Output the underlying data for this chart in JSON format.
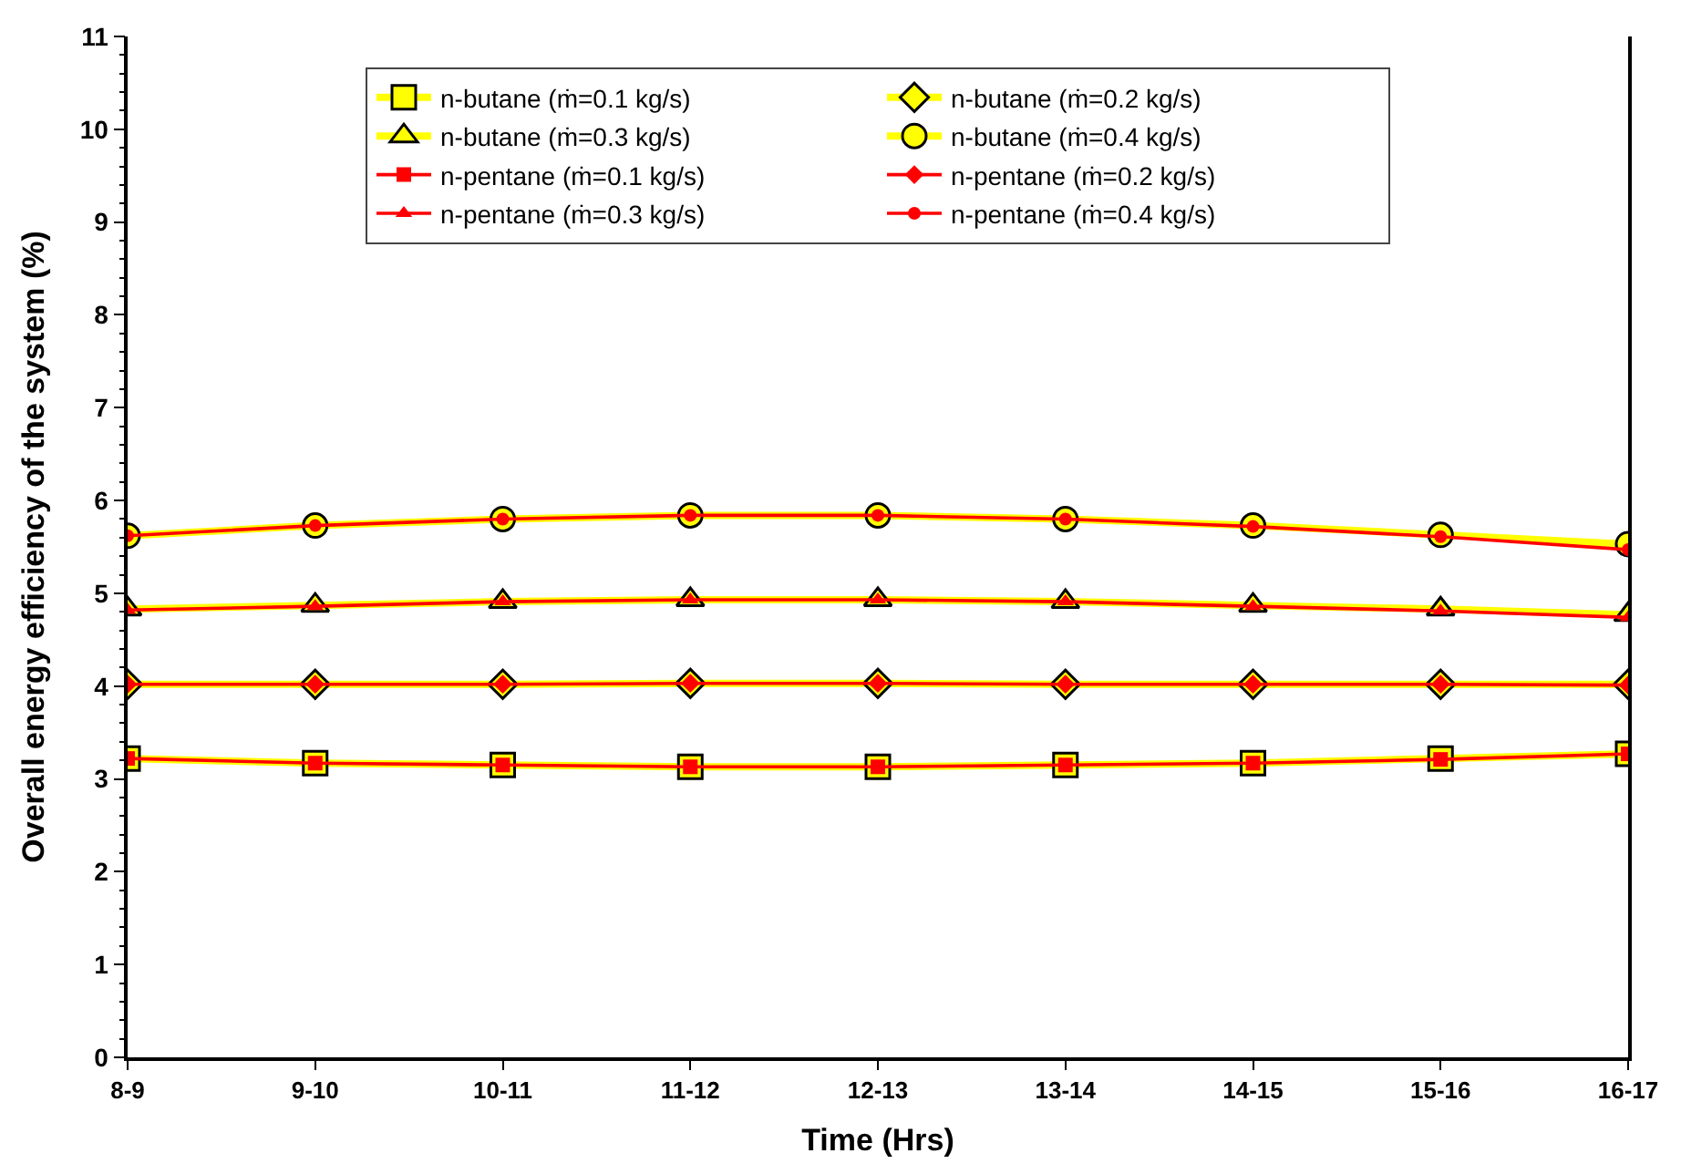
{
  "chart_data": {
    "type": "line",
    "xlabel": "Time (Hrs)",
    "ylabel": "Overall energy efficiency of the system (%)",
    "categories": [
      "8-9",
      "9-10",
      "10-11",
      "11-12",
      "12-13",
      "13-14",
      "14-15",
      "15-16",
      "16-17"
    ],
    "ylim": [
      0,
      11
    ],
    "yticks": [
      0,
      1,
      2,
      3,
      4,
      5,
      6,
      7,
      8,
      9,
      10,
      11
    ],
    "grid": false,
    "legend": "top",
    "series": [
      {
        "name": "n-butane (ṁ=0.1 kg/s)",
        "color": "#ffff00",
        "marker": "square",
        "values": [
          3.22,
          3.17,
          3.15,
          3.13,
          3.13,
          3.15,
          3.17,
          3.22,
          3.27
        ]
      },
      {
        "name": "n-butane (ṁ=0.2 kg/s)",
        "color": "#ffff00",
        "marker": "diamond",
        "values": [
          4.02,
          4.02,
          4.02,
          4.03,
          4.03,
          4.02,
          4.02,
          4.02,
          4.02
        ]
      },
      {
        "name": "n-butane (ṁ=0.3 kg/s)",
        "color": "#ffff00",
        "marker": "triangle",
        "values": [
          4.83,
          4.87,
          4.91,
          4.93,
          4.93,
          4.91,
          4.87,
          4.83,
          4.77
        ]
      },
      {
        "name": "n-butane (ṁ=0.4 kg/s)",
        "color": "#ffff00",
        "marker": "circle",
        "values": [
          5.62,
          5.73,
          5.8,
          5.84,
          5.84,
          5.8,
          5.73,
          5.63,
          5.53
        ]
      },
      {
        "name": "n-pentane (ṁ=0.1 kg/s)",
        "color": "#ff0000",
        "marker": "square",
        "values": [
          3.22,
          3.17,
          3.15,
          3.13,
          3.13,
          3.15,
          3.17,
          3.21,
          3.27
        ]
      },
      {
        "name": "n-pentane (ṁ=0.2 kg/s)",
        "color": "#ff0000",
        "marker": "diamond",
        "values": [
          4.02,
          4.02,
          4.02,
          4.03,
          4.03,
          4.02,
          4.02,
          4.02,
          4.01
        ]
      },
      {
        "name": "n-pentane (ṁ=0.3 kg/s)",
        "color": "#ff0000",
        "marker": "triangle",
        "values": [
          4.82,
          4.86,
          4.91,
          4.93,
          4.93,
          4.91,
          4.86,
          4.81,
          4.74
        ]
      },
      {
        "name": "n-pentane (ṁ=0.4 kg/s)",
        "color": "#ff0000",
        "marker": "circle",
        "values": [
          5.62,
          5.73,
          5.8,
          5.84,
          5.84,
          5.8,
          5.72,
          5.61,
          5.47
        ]
      }
    ]
  }
}
